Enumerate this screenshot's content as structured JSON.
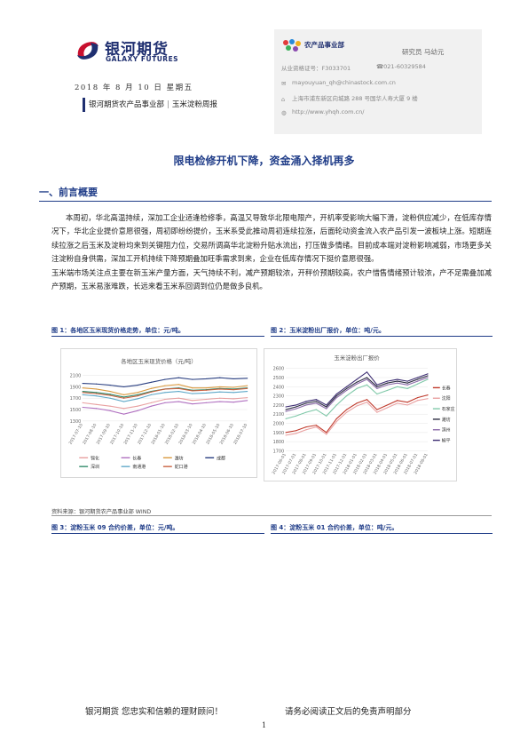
{
  "brand": {
    "name_cn": "银河期货",
    "name_en": "GALAXY FUTURES",
    "primary_color": "#1f2f70",
    "accent_color": "#c8102e"
  },
  "header": {
    "date": "2018 年 8 月 10 日 星期五",
    "tag_left": "银河期货农产品事业部",
    "tag_right": "玉米淀粉周报"
  },
  "infobox": {
    "dept_name": "农产品事业部",
    "analyst": "研究员  马幼元",
    "qualification": "从业资格证号：F3033701",
    "phone": "021-60329584",
    "email": "mayouyuan_qh@chinastock.com.cn",
    "address": "上海市浦东新区向城路 288 号国华人寿大厦 9 楼",
    "website": "http://www.yhqh.com.cn/",
    "icons": [
      "phone-icon",
      "email-icon",
      "address-icon",
      "website-icon"
    ]
  },
  "title": "限电检修开机下降，资金涌入择机再多",
  "section1": {
    "heading": "一、前言概要",
    "p1": "本周初，华北高温持续，深加工企业适逢检修季，高温又导致华北限电限产，开机率受影响大幅下滑，淀粉供应减少，在低库存情况下，华北企业提价意愿很强，周初即纷纷提价，玉米系受此推动周初连续拉涨，后面轮动资金流入农产品引发一波板块上涨。短期连续拉涨之后玉米及淀粉均来到关键阻力位，交易所调高华北淀粉升贴水流出，打压做多情绪。目前成本端对淀粉影响减弱，市场更多关注淀粉自身供需，深加工开机持续下降预期叠加旺季需求到来，企业在低库存情况下挺价意愿很强。",
    "p2": "玉米端市场关注点主要在新玉米产量方面，天气持续不利，减产预期较浓，开秤价预期较高，农户惜售情绪预计较浓，产不足需叠加减产预期，玉米易涨难跌，长远来看玉米系回调到位仍是做多良机。"
  },
  "figures": {
    "fig1_caption": "图 1：各地区玉米现货价格走势，单位：元/吨。",
    "fig2_caption": "图 2：玉米淀粉出厂报价，单位：吨/元。",
    "fig3_caption": "图 3：淀粉玉米 09 合约价差，单位：元/吨。",
    "fig4_caption": "图 4：淀粉玉米 01 合约价差，单位：吨/元。",
    "source": "资料来源：银河期货农产品事业部  WIND"
  },
  "chart_data": [
    {
      "type": "line",
      "title": "各地区玉米现货价格（元/吨）",
      "xlabel": "",
      "ylabel": "",
      "ylim": [
        1300,
        2100
      ],
      "yticks": [
        "2100",
        "1900",
        "1700",
        "1500",
        "1300"
      ],
      "x": [
        "2017-07-10",
        "2017-08-10",
        "2017-09-10",
        "2017-10-10",
        "2017-11-10",
        "2017-12-10",
        "2018-01-10",
        "2018-02-10",
        "2018-03-10",
        "2018-04-10",
        "2018-05-10",
        "2018-06-10",
        "2018-07-10"
      ],
      "legend_position": "bottom",
      "series": [
        {
          "name": "锦化",
          "color": "#e8a0a0",
          "values": [
            1620,
            1590,
            1560,
            1520,
            1560,
            1620,
            1680,
            1700,
            1660,
            1680,
            1700,
            1690,
            1710
          ]
        },
        {
          "name": "长春",
          "color": "#b070c0",
          "values": [
            1540,
            1520,
            1480,
            1420,
            1480,
            1560,
            1620,
            1640,
            1600,
            1620,
            1640,
            1630,
            1660
          ]
        },
        {
          "name": "潍坊",
          "color": "#d99a40",
          "values": [
            1880,
            1860,
            1820,
            1760,
            1800,
            1870,
            1920,
            1940,
            1880,
            1880,
            1900,
            1890,
            1920
          ]
        },
        {
          "name": "成都",
          "color": "#2a3f80",
          "values": [
            1960,
            1950,
            1930,
            1900,
            1930,
            1980,
            2030,
            2060,
            2030,
            2040,
            2060,
            2040,
            2050
          ]
        },
        {
          "name": "深圳",
          "color": "#2f8a6a",
          "values": [
            1820,
            1800,
            1770,
            1720,
            1760,
            1820,
            1860,
            1880,
            1840,
            1850,
            1870,
            1860,
            1880
          ]
        },
        {
          "name": "南通港",
          "color": "#5fa8c8",
          "values": [
            1760,
            1740,
            1700,
            1640,
            1690,
            1760,
            1800,
            1820,
            1780,
            1790,
            1810,
            1800,
            1820
          ]
        },
        {
          "name": "蛇口港",
          "color": "#c86040",
          "values": [
            1800,
            1780,
            1750,
            1700,
            1740,
            1810,
            1860,
            1870,
            1830,
            1840,
            1860,
            1850,
            1870
          ]
        }
      ]
    },
    {
      "type": "line",
      "title": "玉米淀粉出厂报价",
      "xlabel": "",
      "ylabel": "",
      "ylim": [
        1700,
        2600
      ],
      "yticks": [
        "2600",
        "2500",
        "2400",
        "2300",
        "2200",
        "2100",
        "2000",
        "1900",
        "1800",
        "1700"
      ],
      "x": [
        "2017-06-01",
        "2017-07-01",
        "2017-08-01",
        "2017-09-01",
        "2017-10-01",
        "2017-11-01",
        "2017-12-01",
        "2018-01-01",
        "2018-02-01",
        "2018-03-01",
        "2018-04-01",
        "2018-05-01",
        "2018-06-01",
        "2018-07-01",
        "2018-08-01"
      ],
      "legend_position": "right",
      "series": [
        {
          "name": "长春",
          "color": "#c0392b",
          "values": [
            1900,
            1920,
            1960,
            1980,
            1900,
            2050,
            2150,
            2220,
            2260,
            2150,
            2200,
            2250,
            2230,
            2280,
            2310
          ]
        },
        {
          "name": "沈阳",
          "color": "#e9a0a0",
          "values": [
            1870,
            1890,
            1930,
            1960,
            1880,
            2020,
            2120,
            2190,
            2230,
            2120,
            2170,
            2220,
            2200,
            2250,
            2270
          ]
        },
        {
          "name": "石家庄",
          "color": "#7fc8a8",
          "values": [
            2050,
            2080,
            2120,
            2150,
            2080,
            2200,
            2300,
            2380,
            2420,
            2320,
            2360,
            2400,
            2380,
            2430,
            2480
          ]
        },
        {
          "name": "潍坊",
          "color": "#2a2a40",
          "values": [
            2150,
            2180,
            2220,
            2240,
            2180,
            2300,
            2380,
            2450,
            2500,
            2400,
            2440,
            2460,
            2440,
            2480,
            2520
          ]
        },
        {
          "name": "滨州",
          "color": "#8a6aa8",
          "values": [
            2130,
            2160,
            2200,
            2220,
            2160,
            2280,
            2360,
            2430,
            2480,
            2380,
            2420,
            2440,
            2420,
            2460,
            2500
          ]
        },
        {
          "name": "榆平",
          "color": "#3a2a70",
          "values": [
            2180,
            2200,
            2240,
            2260,
            2200,
            2320,
            2400,
            2480,
            2560,
            2420,
            2460,
            2480,
            2460,
            2500,
            2540
          ]
        }
      ]
    }
  ],
  "footer": {
    "slogan": "银河期货  您忠实和信赖的理财顾问！",
    "disclaimer": "请务必阅读正文后的免责声明部分",
    "page": "1"
  }
}
